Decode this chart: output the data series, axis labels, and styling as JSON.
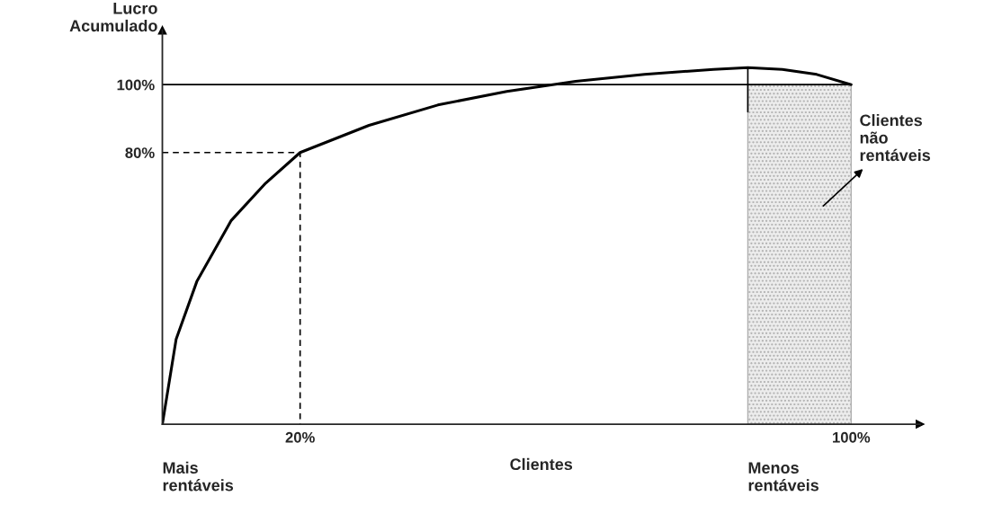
{
  "chart_data": {
    "type": "line",
    "ylabel": "Lucro\nAcumulado",
    "xlabel": "Clientes",
    "xlim": [
      0,
      110
    ],
    "ylim": [
      0,
      116
    ],
    "xticks": [
      {
        "value": 20,
        "label": "20%"
      },
      {
        "value": 100,
        "label": "100%"
      }
    ],
    "yticks": [
      {
        "value": 80,
        "label": "80%"
      },
      {
        "value": 100,
        "label": "100%"
      }
    ],
    "grid": false,
    "legend": false,
    "series": [
      {
        "type": "area",
        "color": "#b0b0b0",
        "x": [
          85,
          100
        ],
        "values": [
          100,
          100
        ]
      },
      {
        "type": "line",
        "color": "#000000",
        "line_style": "solid",
        "x": [
          0,
          100
        ],
        "values": [
          100,
          100
        ]
      },
      {
        "type": "line",
        "color": "#000000",
        "line_style": "dashed",
        "x": [
          0,
          20,
          20
        ],
        "values": [
          80,
          80,
          0
        ]
      },
      {
        "type": "line",
        "color": "#000000",
        "line_style": "solid",
        "x": [
          85,
          85
        ],
        "values": [
          105,
          92
        ]
      },
      {
        "color": "#000000",
        "line_style": "solid",
        "x": [
          0,
          2,
          5,
          10,
          15,
          20,
          30,
          40,
          50,
          60,
          70,
          80,
          85,
          90,
          95,
          100
        ],
        "values": [
          0,
          25,
          42,
          60,
          71,
          80,
          88,
          94,
          98,
          101,
          103,
          104.5,
          105,
          104.5,
          103,
          100
        ]
      }
    ],
    "annotations": [
      {
        "text": "Mais\nrentáveis",
        "x": 0,
        "y": 0
      },
      {
        "text": "Menos\nrentáveis",
        "x": 85,
        "y": 0
      },
      "Clientes\nnão\nrentáveis"
    ]
  }
}
